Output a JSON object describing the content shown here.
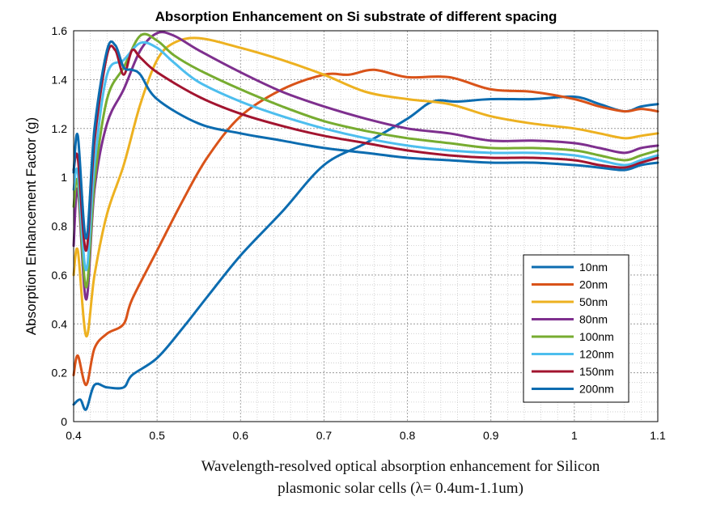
{
  "caption": {
    "line1": "Wavelength-resolved optical absorption enhancement for Silicon",
    "line2": "plasmonic solar cells (λ= 0.4um-1.1um)"
  },
  "chart_data": {
    "type": "line",
    "title": "Absorption Enhancement on Si substrate of different spacing",
    "xlabel": "",
    "ylabel": "Absorption Enhancement Factor (g)",
    "xlim": [
      0.4,
      1.1
    ],
    "ylim": [
      0,
      1.6
    ],
    "xticks": [
      "0.4",
      "0.5",
      "0.6",
      "0.7",
      "0.8",
      "0.9",
      "1",
      "1.1"
    ],
    "yticks": [
      "0",
      "0.2",
      "0.4",
      "0.6",
      "0.8",
      "1",
      "1.2",
      "1.4",
      "1.6"
    ],
    "grid": true,
    "legend_position": "lower-right",
    "series": [
      {
        "name": "10nm",
        "color": "#0c6cb0",
        "points": [
          [
            0.4,
            0.07
          ],
          [
            0.408,
            0.09
          ],
          [
            0.415,
            0.05
          ],
          [
            0.425,
            0.15
          ],
          [
            0.44,
            0.14
          ],
          [
            0.46,
            0.14
          ],
          [
            0.47,
            0.19
          ],
          [
            0.5,
            0.26
          ],
          [
            0.53,
            0.38
          ],
          [
            0.56,
            0.51
          ],
          [
            0.6,
            0.68
          ],
          [
            0.65,
            0.86
          ],
          [
            0.7,
            1.05
          ],
          [
            0.75,
            1.14
          ],
          [
            0.8,
            1.24
          ],
          [
            0.83,
            1.31
          ],
          [
            0.86,
            1.31
          ],
          [
            0.9,
            1.32
          ],
          [
            0.95,
            1.32
          ],
          [
            1.0,
            1.33
          ],
          [
            1.03,
            1.3
          ],
          [
            1.06,
            1.27
          ],
          [
            1.08,
            1.29
          ],
          [
            1.1,
            1.3
          ]
        ]
      },
      {
        "name": "20nm",
        "color": "#d95319",
        "points": [
          [
            0.4,
            0.19
          ],
          [
            0.405,
            0.27
          ],
          [
            0.415,
            0.15
          ],
          [
            0.425,
            0.3
          ],
          [
            0.44,
            0.36
          ],
          [
            0.46,
            0.4
          ],
          [
            0.47,
            0.5
          ],
          [
            0.5,
            0.7
          ],
          [
            0.53,
            0.9
          ],
          [
            0.56,
            1.08
          ],
          [
            0.6,
            1.25
          ],
          [
            0.65,
            1.36
          ],
          [
            0.7,
            1.42
          ],
          [
            0.73,
            1.42
          ],
          [
            0.76,
            1.44
          ],
          [
            0.8,
            1.41
          ],
          [
            0.85,
            1.41
          ],
          [
            0.9,
            1.36
          ],
          [
            0.95,
            1.35
          ],
          [
            1.0,
            1.32
          ],
          [
            1.03,
            1.29
          ],
          [
            1.06,
            1.27
          ],
          [
            1.08,
            1.28
          ],
          [
            1.1,
            1.27
          ]
        ]
      },
      {
        "name": "50nm",
        "color": "#edb120",
        "points": [
          [
            0.4,
            0.6
          ],
          [
            0.405,
            0.7
          ],
          [
            0.415,
            0.35
          ],
          [
            0.425,
            0.6
          ],
          [
            0.44,
            0.85
          ],
          [
            0.46,
            1.05
          ],
          [
            0.48,
            1.3
          ],
          [
            0.5,
            1.48
          ],
          [
            0.52,
            1.55
          ],
          [
            0.55,
            1.57
          ],
          [
            0.6,
            1.53
          ],
          [
            0.65,
            1.48
          ],
          [
            0.7,
            1.42
          ],
          [
            0.75,
            1.35
          ],
          [
            0.8,
            1.32
          ],
          [
            0.85,
            1.3
          ],
          [
            0.9,
            1.25
          ],
          [
            0.95,
            1.22
          ],
          [
            1.0,
            1.2
          ],
          [
            1.03,
            1.18
          ],
          [
            1.06,
            1.16
          ],
          [
            1.08,
            1.17
          ],
          [
            1.1,
            1.18
          ]
        ]
      },
      {
        "name": "80nm",
        "color": "#7e2f8e",
        "points": [
          [
            0.4,
            0.72
          ],
          [
            0.405,
            0.95
          ],
          [
            0.415,
            0.5
          ],
          [
            0.425,
            0.95
          ],
          [
            0.44,
            1.22
          ],
          [
            0.46,
            1.36
          ],
          [
            0.48,
            1.52
          ],
          [
            0.5,
            1.59
          ],
          [
            0.52,
            1.58
          ],
          [
            0.55,
            1.52
          ],
          [
            0.6,
            1.43
          ],
          [
            0.65,
            1.35
          ],
          [
            0.7,
            1.29
          ],
          [
            0.75,
            1.24
          ],
          [
            0.8,
            1.2
          ],
          [
            0.85,
            1.18
          ],
          [
            0.9,
            1.15
          ],
          [
            0.95,
            1.15
          ],
          [
            1.0,
            1.14
          ],
          [
            1.03,
            1.12
          ],
          [
            1.06,
            1.1
          ],
          [
            1.08,
            1.12
          ],
          [
            1.1,
            1.13
          ]
        ]
      },
      {
        "name": "100nm",
        "color": "#77ac30",
        "points": [
          [
            0.4,
            0.88
          ],
          [
            0.405,
            0.98
          ],
          [
            0.415,
            0.55
          ],
          [
            0.425,
            0.98
          ],
          [
            0.44,
            1.32
          ],
          [
            0.46,
            1.45
          ],
          [
            0.48,
            1.58
          ],
          [
            0.5,
            1.56
          ],
          [
            0.52,
            1.5
          ],
          [
            0.55,
            1.44
          ],
          [
            0.6,
            1.36
          ],
          [
            0.65,
            1.29
          ],
          [
            0.7,
            1.23
          ],
          [
            0.75,
            1.19
          ],
          [
            0.8,
            1.16
          ],
          [
            0.85,
            1.14
          ],
          [
            0.9,
            1.12
          ],
          [
            0.95,
            1.12
          ],
          [
            1.0,
            1.11
          ],
          [
            1.03,
            1.09
          ],
          [
            1.06,
            1.07
          ],
          [
            1.08,
            1.09
          ],
          [
            1.1,
            1.11
          ]
        ]
      },
      {
        "name": "120nm",
        "color": "#4dbeee",
        "points": [
          [
            0.4,
            0.95
          ],
          [
            0.405,
            1.02
          ],
          [
            0.415,
            0.62
          ],
          [
            0.425,
            1.05
          ],
          [
            0.44,
            1.42
          ],
          [
            0.46,
            1.48
          ],
          [
            0.48,
            1.55
          ],
          [
            0.5,
            1.53
          ],
          [
            0.52,
            1.47
          ],
          [
            0.55,
            1.39
          ],
          [
            0.6,
            1.31
          ],
          [
            0.65,
            1.25
          ],
          [
            0.7,
            1.2
          ],
          [
            0.75,
            1.16
          ],
          [
            0.8,
            1.13
          ],
          [
            0.85,
            1.11
          ],
          [
            0.9,
            1.1
          ],
          [
            0.95,
            1.1
          ],
          [
            1.0,
            1.09
          ],
          [
            1.03,
            1.07
          ],
          [
            1.06,
            1.05
          ],
          [
            1.08,
            1.07
          ],
          [
            1.1,
            1.09
          ]
        ]
      },
      {
        "name": "150nm",
        "color": "#a2142f",
        "points": [
          [
            0.4,
            1.03
          ],
          [
            0.405,
            1.08
          ],
          [
            0.415,
            0.7
          ],
          [
            0.425,
            1.15
          ],
          [
            0.44,
            1.5
          ],
          [
            0.45,
            1.52
          ],
          [
            0.46,
            1.42
          ],
          [
            0.47,
            1.52
          ],
          [
            0.48,
            1.49
          ],
          [
            0.5,
            1.43
          ],
          [
            0.55,
            1.33
          ],
          [
            0.6,
            1.26
          ],
          [
            0.65,
            1.21
          ],
          [
            0.7,
            1.17
          ],
          [
            0.75,
            1.14
          ],
          [
            0.8,
            1.11
          ],
          [
            0.85,
            1.09
          ],
          [
            0.9,
            1.08
          ],
          [
            0.95,
            1.08
          ],
          [
            1.0,
            1.07
          ],
          [
            1.03,
            1.05
          ],
          [
            1.06,
            1.04
          ],
          [
            1.08,
            1.06
          ],
          [
            1.1,
            1.08
          ]
        ]
      },
      {
        "name": "200nm",
        "color": "#0c6cb0",
        "points": [
          [
            0.4,
            1.02
          ],
          [
            0.405,
            1.17
          ],
          [
            0.415,
            0.75
          ],
          [
            0.425,
            1.2
          ],
          [
            0.44,
            1.52
          ],
          [
            0.45,
            1.54
          ],
          [
            0.46,
            1.45
          ],
          [
            0.47,
            1.44
          ],
          [
            0.48,
            1.42
          ],
          [
            0.5,
            1.32
          ],
          [
            0.55,
            1.22
          ],
          [
            0.6,
            1.18
          ],
          [
            0.65,
            1.15
          ],
          [
            0.7,
            1.12
          ],
          [
            0.75,
            1.1
          ],
          [
            0.8,
            1.08
          ],
          [
            0.85,
            1.07
          ],
          [
            0.9,
            1.06
          ],
          [
            0.95,
            1.06
          ],
          [
            1.0,
            1.05
          ],
          [
            1.03,
            1.04
          ],
          [
            1.06,
            1.03
          ],
          [
            1.08,
            1.05
          ],
          [
            1.1,
            1.06
          ]
        ]
      }
    ]
  }
}
